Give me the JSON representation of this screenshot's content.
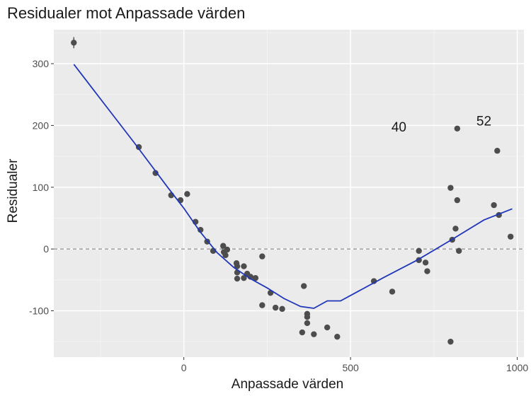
{
  "chart_data": {
    "type": "scatter",
    "title": "Residualer mot Anpassade värden",
    "xlabel": "Anpassade värden",
    "ylabel": "Residualer",
    "xlim": [
      -390,
      1020
    ],
    "ylim": [
      -175,
      355
    ],
    "xticks": [
      0,
      500,
      1000
    ],
    "yticks": [
      -100,
      0,
      100,
      200,
      300
    ],
    "xtick_labels": [
      "0",
      "500",
      "1000"
    ],
    "ytick_labels": [
      "-100",
      "0",
      "100",
      "200",
      "300"
    ],
    "grid": true,
    "points": [
      {
        "x": -330,
        "y": 334
      },
      {
        "x": -135,
        "y": 165
      },
      {
        "x": -85,
        "y": 123
      },
      {
        "x": -38,
        "y": 87
      },
      {
        "x": -10,
        "y": 79
      },
      {
        "x": 10,
        "y": 89
      },
      {
        "x": 35,
        "y": 44
      },
      {
        "x": 50,
        "y": 31
      },
      {
        "x": 70,
        "y": 12
      },
      {
        "x": 88,
        "y": -3
      },
      {
        "x": 118,
        "y": 5
      },
      {
        "x": 120,
        "y": -5
      },
      {
        "x": 125,
        "y": -10
      },
      {
        "x": 130,
        "y": -1
      },
      {
        "x": 158,
        "y": -23
      },
      {
        "x": 160,
        "y": -28
      },
      {
        "x": 160,
        "y": -38
      },
      {
        "x": 160,
        "y": -48
      },
      {
        "x": 180,
        "y": -28
      },
      {
        "x": 180,
        "y": -47
      },
      {
        "x": 190,
        "y": -40
      },
      {
        "x": 200,
        "y": -45
      },
      {
        "x": 215,
        "y": -47
      },
      {
        "x": 235,
        "y": -12
      },
      {
        "x": 235,
        "y": -91
      },
      {
        "x": 260,
        "y": -71
      },
      {
        "x": 275,
        "y": -95
      },
      {
        "x": 295,
        "y": -97
      },
      {
        "x": 360,
        "y": -60
      },
      {
        "x": 355,
        "y": -135
      },
      {
        "x": 370,
        "y": -105
      },
      {
        "x": 370,
        "y": -110
      },
      {
        "x": 370,
        "y": -120
      },
      {
        "x": 390,
        "y": -138
      },
      {
        "x": 430,
        "y": -127
      },
      {
        "x": 460,
        "y": -142
      },
      {
        "x": 570,
        "y": -52
      },
      {
        "x": 625,
        "y": -69
      },
      {
        "x": 705,
        "y": -3
      },
      {
        "x": 705,
        "y": -18
      },
      {
        "x": 725,
        "y": -22
      },
      {
        "x": 730,
        "y": -36
      },
      {
        "x": 800,
        "y": 99
      },
      {
        "x": 800,
        "y": -150
      },
      {
        "x": 805,
        "y": 15
      },
      {
        "x": 815,
        "y": 33
      },
      {
        "x": 820,
        "y": 79
      },
      {
        "x": 820,
        "y": 195
      },
      {
        "x": 825,
        "y": -3
      },
      {
        "x": 930,
        "y": 71
      },
      {
        "x": 940,
        "y": 159
      },
      {
        "x": 945,
        "y": 55
      },
      {
        "x": 980,
        "y": 20
      }
    ],
    "error_bar_point": {
      "x": -330,
      "y": 334,
      "low": 325,
      "high": 343
    },
    "smooth_line": [
      {
        "x": -330,
        "y": 299
      },
      {
        "x": -240,
        "y": 236
      },
      {
        "x": -150,
        "y": 173
      },
      {
        "x": -50,
        "y": 101
      },
      {
        "x": 0,
        "y": 66
      },
      {
        "x": 50,
        "y": 27
      },
      {
        "x": 100,
        "y": -6
      },
      {
        "x": 150,
        "y": -30
      },
      {
        "x": 200,
        "y": -48
      },
      {
        "x": 250,
        "y": -63
      },
      {
        "x": 300,
        "y": -80
      },
      {
        "x": 350,
        "y": -93
      },
      {
        "x": 390,
        "y": -96
      },
      {
        "x": 430,
        "y": -84
      },
      {
        "x": 470,
        "y": -84
      },
      {
        "x": 600,
        "y": -46
      },
      {
        "x": 700,
        "y": -18
      },
      {
        "x": 800,
        "y": 14
      },
      {
        "x": 900,
        "y": 47
      },
      {
        "x": 985,
        "y": 65
      }
    ],
    "hline": {
      "y": 0,
      "style": "dashed"
    },
    "annotations": [
      {
        "text": "40",
        "x": 645,
        "y": 190
      },
      {
        "text": "52",
        "x": 900,
        "y": 200
      }
    ],
    "colors": {
      "panel": "#ebebeb",
      "grid_major": "#ffffff",
      "grid_minor": "#f5f5f5",
      "point": "#4d4d4d",
      "line": "#2036b8",
      "hline": "#8c8c8c"
    }
  }
}
